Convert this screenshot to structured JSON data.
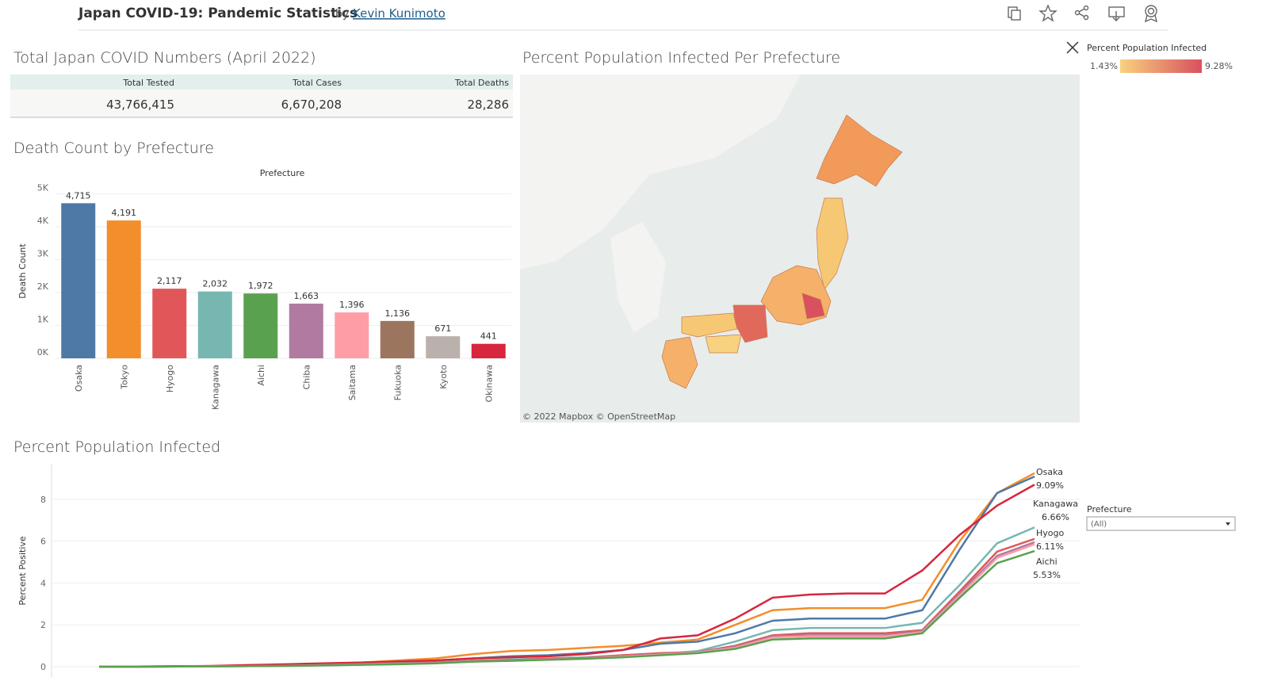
{
  "header": {
    "title": "Japan COVID-19: Pandemic Statistics",
    "by": "by",
    "author": "Kevin Kunimoto"
  },
  "totals": {
    "title": "Total Japan COVID Numbers (April 2022)",
    "columns": [
      "Total Tested",
      "Total Cases",
      "Total Deaths"
    ],
    "values": [
      "43,766,415",
      "6,670,208",
      "28,286"
    ]
  },
  "map": {
    "title": "Percent Population Infected Per Prefecture",
    "attribution": "© 2022 Mapbox © OpenStreetMap",
    "legend": {
      "title": "Percent Population Infected",
      "min_label": "1.43%",
      "max_label": "9.28%",
      "colors": [
        "#f8d27e",
        "#d9505f"
      ]
    }
  },
  "filter": {
    "label": "Prefecture",
    "value": "(All)"
  },
  "chart_data": [
    {
      "type": "bar",
      "title": "Death Count by Prefecture",
      "header": "Prefecture",
      "y_label": "Death Count",
      "categories": [
        "Osaka",
        "Tokyo",
        "Hyogo",
        "Kanagawa",
        "Aichi",
        "Chiba",
        "Saitama",
        "Fukuoka",
        "Kyoto",
        "Okinawa"
      ],
      "values": [
        4715,
        4191,
        2117,
        2032,
        1972,
        1663,
        1396,
        1136,
        671,
        441
      ],
      "value_labels": [
        "4,715",
        "4,191",
        "2,117",
        "2,032",
        "1,972",
        "1,663",
        "1,396",
        "1,136",
        "671",
        "441"
      ],
      "colors": [
        "#4e79a7",
        "#f28e2b",
        "#e15759",
        "#76b7b2",
        "#59a14f",
        "#b07aa1",
        "#ff9da7",
        "#9c755f",
        "#bab0ac",
        "#d7263d"
      ],
      "ylim": [
        0,
        5350
      ],
      "yticks": [
        {
          "value": 0,
          "label": "0K"
        },
        {
          "value": 1000,
          "label": "1K"
        },
        {
          "value": 2000,
          "label": "2K"
        },
        {
          "value": 3000,
          "label": "3K"
        },
        {
          "value": 4000,
          "label": "4K"
        },
        {
          "value": 5000,
          "label": "5K"
        }
      ],
      "grid": true
    },
    {
      "type": "line",
      "title": "Percent Population Infected",
      "y_label": "Percent Positive",
      "categories": [
        null,
        null,
        null,
        null,
        null,
        null,
        null,
        null,
        null,
        null,
        null,
        null,
        null,
        null,
        null,
        null,
        null,
        null,
        null,
        null,
        null,
        null,
        null,
        null,
        null,
        null
      ],
      "ylim": [
        -0.53,
        9.7
      ],
      "yticks": [
        0,
        2,
        4,
        6,
        8
      ],
      "grid": true,
      "series": [
        {
          "color": "#f28e2b",
          "values": [
            0,
            0.01,
            0.02,
            0.03,
            0.06,
            0.1,
            0.15,
            0.2,
            0.3,
            0.4,
            0.6,
            0.75,
            0.8,
            0.9,
            1.0,
            1.15,
            1.3,
            2.0,
            2.7,
            2.8,
            2.8,
            2.8,
            3.2,
            6.0,
            8.3,
            9.25
          ]
        },
        {
          "name": "Osaka",
          "end_label": "9.09%",
          "color": "#4e79a7",
          "values": [
            0,
            0.01,
            0.02,
            0.03,
            0.05,
            0.08,
            0.12,
            0.17,
            0.22,
            0.3,
            0.4,
            0.5,
            0.55,
            0.65,
            0.8,
            1.1,
            1.2,
            1.6,
            2.2,
            2.3,
            2.3,
            2.3,
            2.7,
            5.6,
            8.3,
            9.09
          ]
        },
        {
          "color": "#d7263d",
          "values": [
            0,
            0.01,
            0.02,
            0.04,
            0.08,
            0.12,
            0.16,
            0.2,
            0.25,
            0.3,
            0.4,
            0.45,
            0.5,
            0.6,
            0.8,
            1.35,
            1.5,
            2.3,
            3.3,
            3.45,
            3.5,
            3.5,
            4.6,
            6.3,
            7.7,
            8.7
          ]
        },
        {
          "name": "Kanagawa",
          "end_label": "6.66%",
          "color": "#76b7b2",
          "values": [
            0,
            0,
            0.01,
            0.02,
            0.03,
            0.05,
            0.08,
            0.12,
            0.16,
            0.2,
            0.3,
            0.35,
            0.4,
            0.45,
            0.55,
            0.6,
            0.75,
            1.2,
            1.75,
            1.85,
            1.85,
            1.85,
            2.1,
            3.9,
            5.9,
            6.66
          ]
        },
        {
          "name": "Hyogo",
          "end_label": "6.11%",
          "color": "#e15759",
          "values": [
            0,
            0,
            0.01,
            0.02,
            0.03,
            0.05,
            0.08,
            0.1,
            0.14,
            0.2,
            0.28,
            0.32,
            0.38,
            0.42,
            0.55,
            0.65,
            0.7,
            1.0,
            1.5,
            1.6,
            1.6,
            1.6,
            1.75,
            3.6,
            5.5,
            6.11
          ]
        },
        {
          "color": "#b07aa1",
          "values": [
            0,
            0,
            0.01,
            0.02,
            0.03,
            0.05,
            0.07,
            0.1,
            0.13,
            0.18,
            0.26,
            0.3,
            0.35,
            0.4,
            0.5,
            0.6,
            0.7,
            0.95,
            1.45,
            1.5,
            1.5,
            1.5,
            1.7,
            3.5,
            5.3,
            5.95
          ]
        },
        {
          "color": "#ff9da7",
          "values": [
            0,
            0,
            0.01,
            0.02,
            0.03,
            0.04,
            0.07,
            0.1,
            0.13,
            0.17,
            0.25,
            0.29,
            0.34,
            0.39,
            0.48,
            0.58,
            0.68,
            0.9,
            1.4,
            1.45,
            1.45,
            1.45,
            1.65,
            3.4,
            5.2,
            5.85
          ]
        },
        {
          "name": "Aichi",
          "end_label": "5.53%",
          "color": "#59a14f",
          "values": [
            0,
            0,
            0.01,
            0.02,
            0.03,
            0.04,
            0.06,
            0.09,
            0.12,
            0.16,
            0.24,
            0.28,
            0.33,
            0.38,
            0.45,
            0.55,
            0.65,
            0.85,
            1.3,
            1.35,
            1.35,
            1.35,
            1.6,
            3.3,
            4.95,
            5.53
          ]
        }
      ]
    }
  ]
}
